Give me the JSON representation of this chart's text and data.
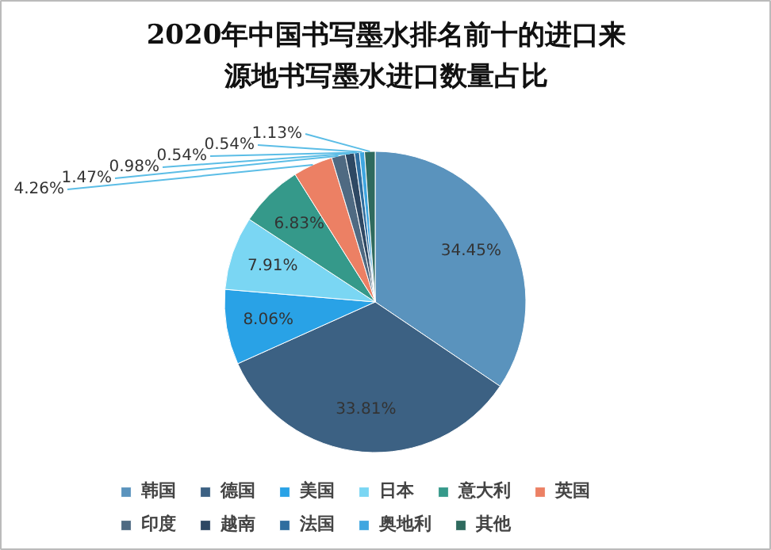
{
  "chart_data": {
    "type": "pie",
    "title": "2020年中国书写墨水排名前十的进口来源地书写墨水进口数量占比",
    "categories": [
      "韩国",
      "德国",
      "美国",
      "日本",
      "意大利",
      "英国",
      "印度",
      "越南",
      "法国",
      "奥地利",
      "其他"
    ],
    "values": [
      34.45,
      33.81,
      8.06,
      7.91,
      6.83,
      4.26,
      1.47,
      0.98,
      0.54,
      0.54,
      1.13
    ],
    "colors": [
      "#5a93bd",
      "#3c6183",
      "#29a2e6",
      "#7ad6f3",
      "#35998a",
      "#ec8064",
      "#4f6a82",
      "#2e4863",
      "#2f6e9f",
      "#3fa6e0",
      "#2f6a5e"
    ],
    "value_labels": [
      "34.45%",
      "33.81%",
      "8.06%",
      "7.91%",
      "6.83%",
      "4.26%",
      "1.47%",
      "0.98%",
      "0.54%",
      "0.54%",
      "1.13%"
    ],
    "legend": "bottom"
  }
}
